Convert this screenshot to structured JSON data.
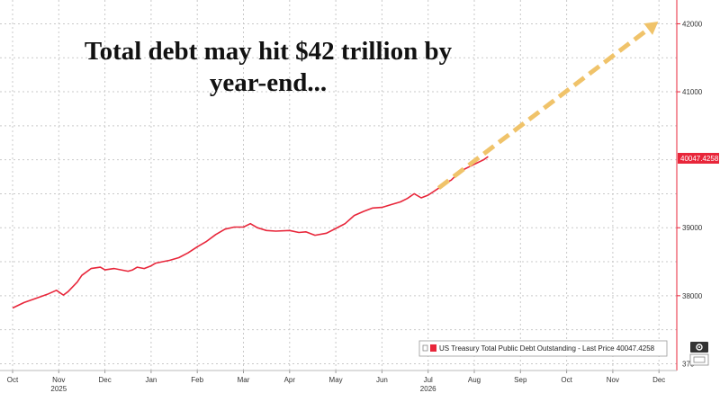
{
  "chart_data": {
    "type": "line",
    "title": "Total debt may hit $42 trillion by year-end...",
    "title_lines": [
      "Total debt may hit $42 trillion by",
      "year-end..."
    ],
    "x_months": [
      "Oct",
      "Nov",
      "Dec",
      "Jan",
      "Feb",
      "Mar",
      "Apr",
      "May",
      "Jun",
      "Jul",
      "Aug",
      "Sep",
      "Oct",
      "Nov",
      "Dec"
    ],
    "x_years": [
      {
        "label": "2025",
        "month_index": 1
      },
      {
        "label": "2026",
        "month_index": 9
      }
    ],
    "ylim": [
      36900,
      42350
    ],
    "yticks": [
      38000,
      39000,
      41000,
      42000
    ],
    "ytick_partial": "370",
    "grid": true,
    "series": [
      {
        "name": "US Treasury Total Public Debt Outstanding - Last Price",
        "color": "#e8263a",
        "points": [
          [
            0.0,
            37820
          ],
          [
            0.25,
            37900
          ],
          [
            0.5,
            37960
          ],
          [
            0.75,
            38020
          ],
          [
            0.95,
            38080
          ],
          [
            1.1,
            38010
          ],
          [
            1.2,
            38060
          ],
          [
            1.4,
            38200
          ],
          [
            1.5,
            38300
          ],
          [
            1.7,
            38400
          ],
          [
            1.9,
            38420
          ],
          [
            2.0,
            38380
          ],
          [
            2.2,
            38400
          ],
          [
            2.5,
            38360
          ],
          [
            2.6,
            38380
          ],
          [
            2.7,
            38420
          ],
          [
            2.85,
            38400
          ],
          [
            3.0,
            38440
          ],
          [
            3.1,
            38480
          ],
          [
            3.25,
            38500
          ],
          [
            3.4,
            38520
          ],
          [
            3.6,
            38560
          ],
          [
            3.8,
            38630
          ],
          [
            4.0,
            38720
          ],
          [
            4.2,
            38800
          ],
          [
            4.4,
            38900
          ],
          [
            4.6,
            38980
          ],
          [
            4.8,
            39010
          ],
          [
            5.0,
            39010
          ],
          [
            5.15,
            39060
          ],
          [
            5.3,
            39000
          ],
          [
            5.5,
            38960
          ],
          [
            5.7,
            38950
          ],
          [
            6.0,
            38960
          ],
          [
            6.2,
            38930
          ],
          [
            6.35,
            38940
          ],
          [
            6.55,
            38890
          ],
          [
            6.8,
            38920
          ],
          [
            7.0,
            38990
          ],
          [
            7.2,
            39060
          ],
          [
            7.4,
            39180
          ],
          [
            7.6,
            39240
          ],
          [
            7.8,
            39290
          ],
          [
            8.0,
            39300
          ],
          [
            8.2,
            39340
          ],
          [
            8.4,
            39380
          ],
          [
            8.55,
            39430
          ],
          [
            8.7,
            39500
          ],
          [
            8.85,
            39440
          ],
          [
            9.0,
            39480
          ],
          [
            9.2,
            39570
          ],
          [
            9.35,
            39650
          ],
          [
            9.5,
            39700
          ],
          [
            9.65,
            39800
          ],
          [
            9.75,
            39850
          ],
          [
            9.9,
            39900
          ],
          [
            10.05,
            39950
          ],
          [
            10.2,
            40000
          ],
          [
            10.3,
            40047.4258
          ]
        ]
      }
    ],
    "projection": {
      "from": [
        10.3,
        40047.4258
      ],
      "to": [
        14.0,
        42000
      ],
      "color": "#f0c36a"
    },
    "last_price_label": "40047.4258",
    "legend": {
      "text": "US Treasury Total Public Debt Outstanding - Last Price 40047.4258",
      "position": "bottom-right"
    }
  },
  "icons": {
    "gear": "gear-icon",
    "axis_scale": "axis-scale-icon"
  }
}
